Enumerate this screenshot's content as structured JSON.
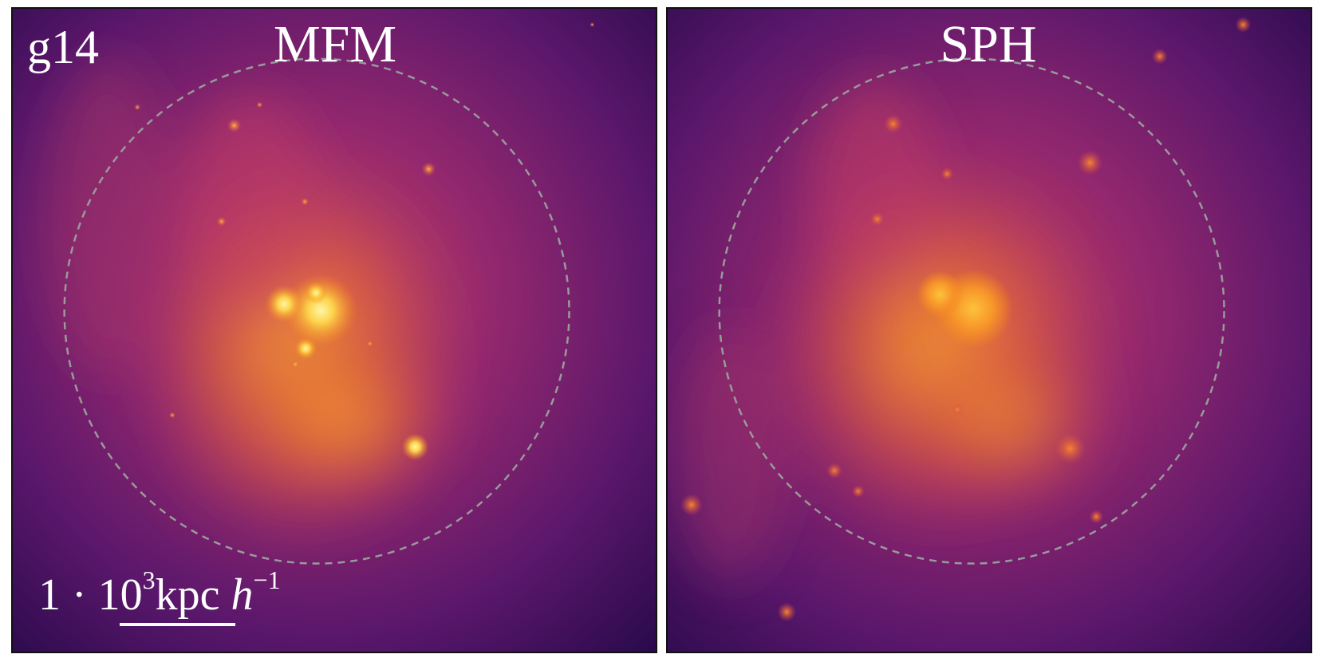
{
  "panels": [
    {
      "title": "MFM",
      "halo_name": "g14",
      "scalebar": {
        "prefix": "1 · 10",
        "exponent": "3",
        "unit": "kpc ",
        "unit_italic": "h",
        "unit_exponent": "−1"
      }
    },
    {
      "title": "SPH"
    }
  ],
  "colors": {
    "background_dark": "#2b0a4d",
    "colormap_mid": "#b5376c",
    "colormap_bright": "#f58a1f",
    "colormap_peak": "#fde26a",
    "virial_circle": "#9a9a9a",
    "panel_border": "#111111",
    "text": "#ffffff"
  },
  "colormap": "inferno-like",
  "overlay": "dashed circle (virial radius)"
}
